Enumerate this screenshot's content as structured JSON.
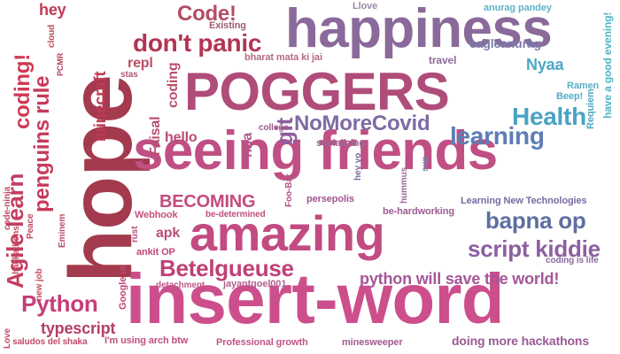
{
  "words": [
    {
      "text": "hope",
      "color": "#a33a4e"
    },
    {
      "text": "happiness",
      "color": "#8a6a9a"
    },
    {
      "text": "POGGERS",
      "color": "#b04c7a"
    },
    {
      "text": "seeing friends",
      "color": "#c04f84"
    },
    {
      "text": "insert-word",
      "color": "#cc4f8c"
    },
    {
      "text": "amazing",
      "color": "#c24b82"
    },
    {
      "text": "Code!",
      "color": "#b34d65"
    },
    {
      "text": "don't panic",
      "color": "#b33553"
    },
    {
      "text": "coding!",
      "color": "#cf3a53"
    },
    {
      "text": "penguins rule",
      "color": "#c73a5a"
    },
    {
      "text": "Agile learn",
      "color": "#c33e62"
    },
    {
      "text": "Python",
      "color": "#c63d78"
    },
    {
      "text": "Betelgueuse",
      "color": "#c04076"
    },
    {
      "text": "BECOMING",
      "color": "#c24c7d"
    },
    {
      "text": "bapna op",
      "color": "#5e6fa1"
    },
    {
      "text": "script kiddie",
      "color": "#8c5fa0"
    },
    {
      "text": "Health",
      "color": "#4aa3c4"
    },
    {
      "text": "learning",
      "color": "#5d7db6"
    },
    {
      "text": "NoMoreCovid",
      "color": "#7f6aa4"
    },
    {
      "text": "git",
      "color": "#8e5e9f"
    },
    {
      "text": "python will save the world!",
      "color": "#a45698"
    },
    {
      "text": "typescript",
      "color": "#b43e66"
    },
    {
      "text": "minecraft",
      "color": "#bf3a54"
    },
    {
      "text": "hey",
      "color": "#c13a52"
    },
    {
      "text": "repl",
      "color": "#b84e63"
    },
    {
      "text": "coding",
      "color": "#b9516b"
    },
    {
      "text": "Faisal",
      "color": "#bb4e73"
    },
    {
      "text": "hello",
      "color": "#b84d72"
    },
    {
      "text": "nba",
      "color": "#ab5986"
    },
    {
      "text": "apk",
      "color": "#b94e78"
    },
    {
      "text": "Nyaa",
      "color": "#4ca8c4"
    },
    {
      "text": "eagleanurag",
      "color": "#7a7aa8"
    },
    {
      "text": "travel",
      "color": "#8e6a9e"
    },
    {
      "text": "Llove",
      "color": "#9a8aa8"
    },
    {
      "text": "anurag pandey",
      "color": "#5eb3c8"
    },
    {
      "text": "have a good evening!",
      "color": "#4fb5c8"
    },
    {
      "text": "Ramen",
      "color": "#5ab0c5"
    },
    {
      "text": "Beep!",
      "color": "#55aac4"
    },
    {
      "text": "Requiem",
      "color": "#50a8c5"
    },
    {
      "text": "Existing",
      "color": "#a35a6e"
    },
    {
      "text": "bharat mata ki jai",
      "color": "#b76a7e"
    },
    {
      "text": "college",
      "color": "#9d5a8a"
    },
    {
      "text": "socializing",
      "color": "#9a6a98"
    },
    {
      "text": "hey yo",
      "color": "#7a6a98"
    },
    {
      "text": "sup",
      "color": "#6a8aaf"
    },
    {
      "text": "hummus",
      "color": "#9a6a98"
    },
    {
      "text": "Foo-Bar",
      "color": "#b15585"
    },
    {
      "text": "persepolis",
      "color": "#a45590"
    },
    {
      "text": "be-hardworking",
      "color": "#9d5a92"
    },
    {
      "text": "Learning New Technologies",
      "color": "#7a6aa0"
    },
    {
      "text": "Webhook",
      "color": "#c4527e"
    },
    {
      "text": "be-determined",
      "color": "#c04f7e"
    },
    {
      "text": "rust",
      "color": "#b84c7a"
    },
    {
      "text": "ankit OP",
      "color": "#c0487a"
    },
    {
      "text": "detachment",
      "color": "#c05a88"
    },
    {
      "text": "jayantgoel001",
      "color": "#b25f92"
    },
    {
      "text": "coding is life",
      "color": "#8e6aa0"
    },
    {
      "text": "Google io",
      "color": "#c4457a"
    },
    {
      "text": "I'm using arch btw",
      "color": "#c04f7e"
    },
    {
      "text": "Professional growth",
      "color": "#c0558a"
    },
    {
      "text": "minesweeper",
      "color": "#a25a90"
    },
    {
      "text": "doing more hackathons",
      "color": "#9a5a92"
    },
    {
      "text": "saludos del shaka",
      "color": "#c44a6a"
    },
    {
      "text": "Love",
      "color": "#c94a68"
    },
    {
      "text": "new job",
      "color": "#c54a5e"
    },
    {
      "text": "hackathons",
      "color": "#c04a5e"
    },
    {
      "text": "Eminem",
      "color": "#be4d68"
    },
    {
      "text": "Peace",
      "color": "#c34a5e"
    },
    {
      "text": "code-ninja",
      "color": "#c04b5f"
    },
    {
      "text": "stas",
      "color": "#b35a6e"
    },
    {
      "text": "PCMR",
      "color": "#b0475c"
    },
    {
      "text": "cloud",
      "color": "#b7465c"
    }
  ]
}
